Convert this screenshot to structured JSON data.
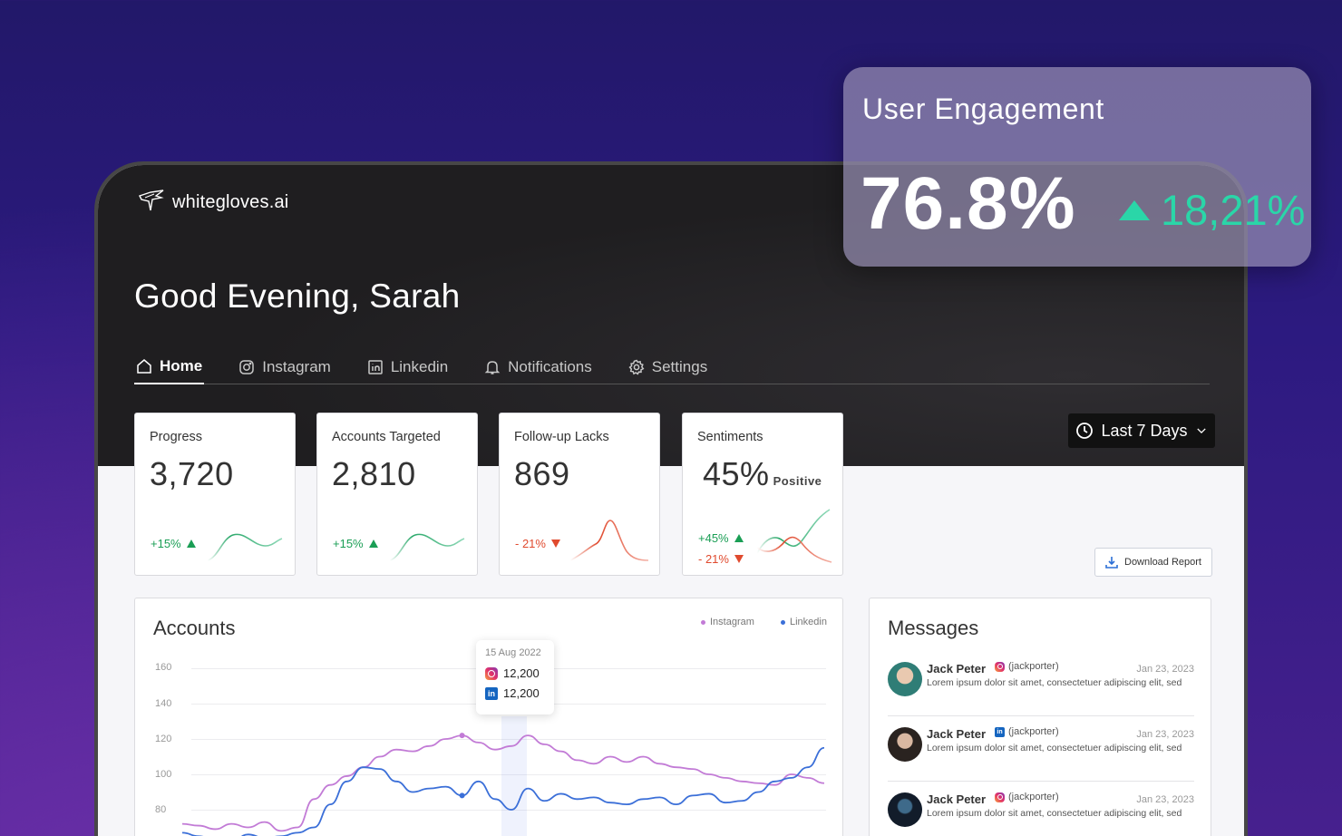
{
  "app": {
    "brand": "whitegloves.ai",
    "greeting": "Good Evening, Sarah"
  },
  "tabs": [
    {
      "label": "Home",
      "icon": "home-icon",
      "active": true
    },
    {
      "label": "Instagram",
      "icon": "instagram-icon"
    },
    {
      "label": "Linkedin",
      "icon": "linkedin-icon"
    },
    {
      "label": "Notifications",
      "icon": "bell-icon"
    },
    {
      "label": "Settings",
      "icon": "gear-icon"
    }
  ],
  "date_range": {
    "label": "Last 7 Days",
    "icon": "clock-icon"
  },
  "cards": {
    "progress": {
      "title": "Progress",
      "value": "3,720",
      "change": "+15%",
      "direction": "up"
    },
    "accounts_targeted": {
      "title": "Accounts Targeted",
      "value": "2,810",
      "change": "+15%",
      "direction": "up"
    },
    "follow_up": {
      "title": "Follow-up Lacks",
      "value": "869",
      "change": "- 21%",
      "direction": "down"
    },
    "sentiments": {
      "title": "Sentiments",
      "value": "45%",
      "suffix": "Positive",
      "change_up": "+45%",
      "change_down": "- 21%"
    }
  },
  "download": {
    "label": "Download Report"
  },
  "accounts": {
    "title": "Accounts",
    "legend": [
      {
        "name": "Instagram",
        "color": "#c27bd6"
      },
      {
        "name": "Linkedin",
        "color": "#3b6fd8"
      }
    ],
    "yticks": [
      "160",
      "140",
      "120",
      "100",
      "80"
    ],
    "tooltip": {
      "date": "15 Aug 2022",
      "instagram": "12,200",
      "linkedin": "12,200"
    }
  },
  "chart_data": {
    "type": "line",
    "title": "Accounts",
    "ylim": [
      60,
      160
    ],
    "series": [
      {
        "name": "Instagram",
        "color": "#c27bd6",
        "values": [
          72,
          71,
          69,
          72,
          70,
          73,
          68,
          70,
          86,
          94,
          99,
          104,
          110,
          114,
          113,
          116,
          120,
          122,
          118,
          114,
          116,
          122,
          117,
          113,
          108,
          106,
          110,
          107,
          110,
          106,
          104,
          103,
          100,
          98,
          96,
          95,
          94,
          100,
          98,
          95
        ]
      },
      {
        "name": "Linkedin",
        "color": "#3b6fd8",
        "values": [
          67,
          65,
          63,
          62,
          66,
          64,
          65,
          67,
          70,
          83,
          96,
          104,
          103,
          96,
          90,
          92,
          93,
          88,
          96,
          86,
          80,
          92,
          85,
          89,
          86,
          87,
          84,
          83,
          86,
          87,
          83,
          88,
          89,
          84,
          85,
          90,
          96,
          98,
          104,
          115
        ]
      }
    ]
  },
  "messages": {
    "title": "Messages",
    "items": [
      {
        "name": "Jack Peter",
        "platform": "instagram",
        "handle": "(jackporter)",
        "date": "Jan 23, 2023",
        "text": "Lorem ipsum dolor sit amet, consectetuer adipiscing elit, sed"
      },
      {
        "name": "Jack Peter",
        "platform": "linkedin",
        "handle": "(jackporter)",
        "date": "Jan 23, 2023",
        "text": "Lorem ipsum dolor sit amet, consectetuer adipiscing elit, sed"
      },
      {
        "name": "Jack Peter",
        "platform": "instagram",
        "handle": "(jackporter)",
        "date": "Jan 23, 2023",
        "text": "Lorem ipsum dolor sit amet, consectetuer adipiscing elit, sed"
      }
    ]
  },
  "engagement": {
    "title": "User Engagement",
    "value": "76.8%",
    "change": "18,21%",
    "color": "#2ad6a8"
  }
}
